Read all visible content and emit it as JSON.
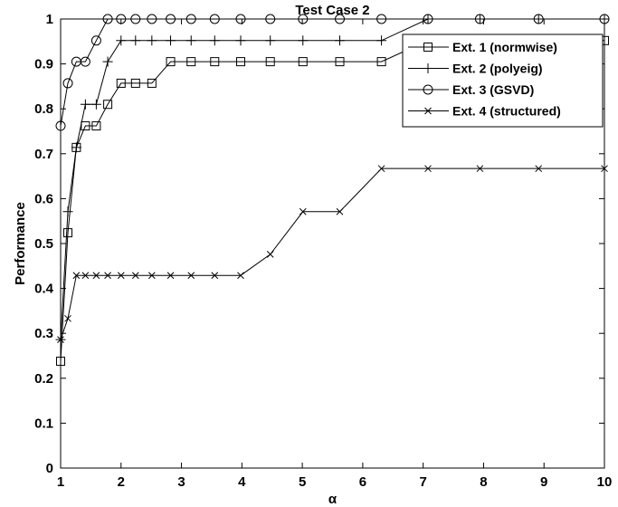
{
  "chart_data": {
    "type": "line",
    "title": "Test Case 2",
    "xlabel": "α",
    "ylabel": "Performance",
    "xlim": [
      1,
      10
    ],
    "ylim": [
      0,
      1
    ],
    "xticks": [
      1,
      2,
      3,
      4,
      5,
      6,
      7,
      8,
      9,
      10
    ],
    "yticks": [
      0,
      0.1,
      0.2,
      0.3,
      0.4,
      0.5,
      0.6,
      0.7,
      0.8,
      0.9,
      1
    ],
    "ytick_labels": [
      "0",
      "0.1",
      "0.2",
      "0.3",
      "0.4",
      "0.5",
      "0.6",
      "0.7",
      "0.8",
      "0.9",
      "1"
    ],
    "grid": false,
    "legend_position": "top-right",
    "series": [
      {
        "name": "Ext. 1 (normwise)",
        "marker": "square",
        "x": [
          1,
          1.12,
          1.26,
          1.41,
          1.59,
          1.78,
          2.0,
          2.24,
          2.51,
          2.82,
          3.16,
          3.55,
          3.98,
          4.47,
          5.01,
          5.62,
          6.31,
          7.08,
          7.94,
          8.91,
          10
        ],
        "values": [
          0.238,
          0.524,
          0.714,
          0.762,
          0.762,
          0.81,
          0.857,
          0.857,
          0.857,
          0.905,
          0.905,
          0.905,
          0.905,
          0.905,
          0.905,
          0.905,
          0.905,
          0.952,
          0.952,
          0.952,
          0.952
        ]
      },
      {
        "name": "Ext. 2 (polyeig)",
        "marker": "plus",
        "x": [
          1,
          1.12,
          1.26,
          1.41,
          1.59,
          1.78,
          2.0,
          2.24,
          2.51,
          2.82,
          3.16,
          3.55,
          3.98,
          4.47,
          5.01,
          5.62,
          6.31,
          7.08,
          7.94,
          8.91,
          10
        ],
        "values": [
          0.286,
          0.571,
          0.714,
          0.81,
          0.81,
          0.905,
          0.952,
          0.952,
          0.952,
          0.952,
          0.952,
          0.952,
          0.952,
          0.952,
          0.952,
          0.952,
          0.952,
          1,
          1,
          1,
          1
        ]
      },
      {
        "name": "Ext. 3 (GSVD)",
        "marker": "circle",
        "x": [
          1,
          1.12,
          1.26,
          1.41,
          1.59,
          1.78,
          2.0,
          2.24,
          2.51,
          2.82,
          3.16,
          3.55,
          3.98,
          4.47,
          5.01,
          5.62,
          6.31,
          7.08,
          7.94,
          8.91,
          10
        ],
        "values": [
          0.762,
          0.857,
          0.905,
          0.905,
          0.952,
          1,
          1,
          1,
          1,
          1,
          1,
          1,
          1,
          1,
          1,
          1,
          1,
          1,
          1,
          1,
          1
        ]
      },
      {
        "name": "Ext. 4 (structured)",
        "marker": "x",
        "x": [
          1,
          1.12,
          1.26,
          1.41,
          1.59,
          1.78,
          2.0,
          2.24,
          2.51,
          2.82,
          3.16,
          3.55,
          3.98,
          4.47,
          5.01,
          5.62,
          6.31,
          7.08,
          7.94,
          8.91,
          10
        ],
        "values": [
          0.286,
          0.333,
          0.429,
          0.429,
          0.429,
          0.429,
          0.429,
          0.429,
          0.429,
          0.429,
          0.429,
          0.429,
          0.429,
          0.476,
          0.571,
          0.571,
          0.667,
          0.667,
          0.667,
          0.667,
          0.667
        ]
      }
    ]
  }
}
